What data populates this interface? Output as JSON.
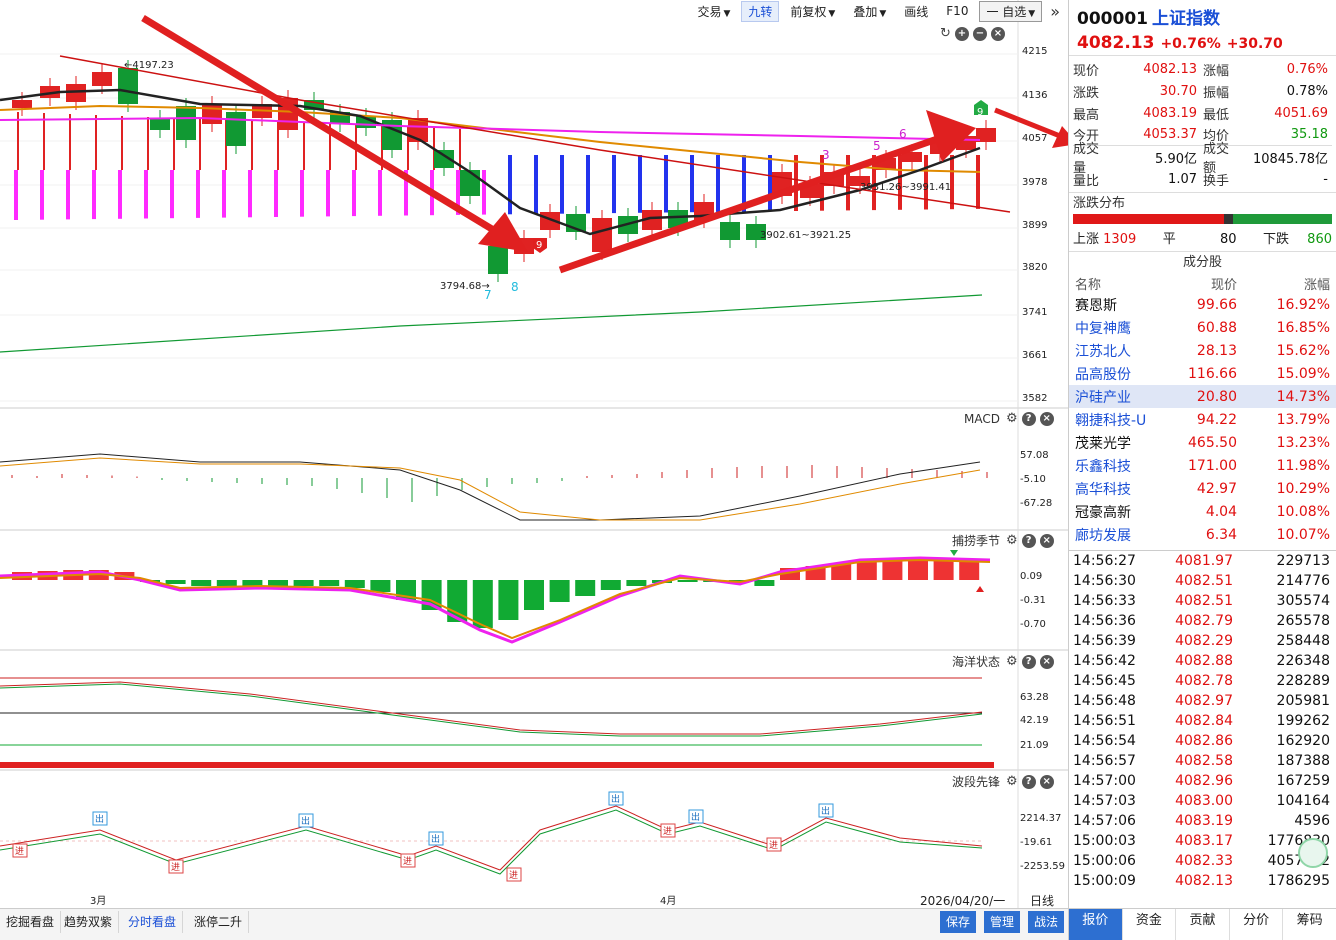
{
  "toolbar": {
    "items": [
      "交易",
      "九转",
      "前复权",
      "叠加",
      "画线",
      "F10",
      "一 自选"
    ],
    "more_icon": "double-chevron-right-icon"
  },
  "main_chart": {
    "price_axis": [
      "4215",
      "4136",
      "4057",
      "3978",
      "3899",
      "3820",
      "3741",
      "3661",
      "3582"
    ],
    "annotations": {
      "high": "←4197.23",
      "low": "3794.68→",
      "mid1": "3902.61~3921.25",
      "mid2": "3931.26~3991.41"
    },
    "nine_counts": {
      "seven": "7",
      "eight": "8",
      "nine_red": "9",
      "nine_green": "9",
      "three": "3",
      "five": "5",
      "six": "6",
      "nine_small": "9"
    },
    "x_labels": [
      "3月",
      "4月"
    ]
  },
  "macd": {
    "title": "MACD",
    "axis": [
      "57.08",
      "-5.10",
      "-67.28"
    ]
  },
  "season": {
    "title": "捕捞季节",
    "axis": [
      "0.09",
      "-0.31",
      "-0.70"
    ]
  },
  "ocean": {
    "title": "海洋状态",
    "axis": [
      "63.28",
      "42.19",
      "21.09"
    ]
  },
  "wave": {
    "title": "波段先锋",
    "axis": [
      "2214.37",
      "-19.61",
      "-2253.59"
    ],
    "out_label": "出",
    "in_label": "进"
  },
  "footer": {
    "date": "2026/04/20/一",
    "period": "日线",
    "tabs": [
      "挖掘看盘",
      "趋势双紫",
      "分时看盘",
      "涨停二升"
    ],
    "right_buttons": [
      "保存",
      "管理",
      "战法"
    ]
  },
  "quote": {
    "code": "000001",
    "name": "上证指数",
    "price": "4082.13",
    "change_pct": "+0.76%",
    "change": "+30.70",
    "stats": [
      {
        "l1": "现价",
        "v1": "4082.13",
        "c1": "red",
        "l2": "涨幅",
        "v2": "0.76%",
        "c2": "red"
      },
      {
        "l1": "涨跌",
        "v1": "30.70",
        "c1": "red",
        "l2": "振幅",
        "v2": "0.78%",
        "c2": "blk"
      },
      {
        "l1": "最高",
        "v1": "4083.19",
        "c1": "red",
        "l2": "最低",
        "v2": "4051.69",
        "c2": "red"
      },
      {
        "l1": "今开",
        "v1": "4053.37",
        "c1": "red",
        "l2": "均价",
        "v2": "35.18",
        "c2": "green"
      },
      {
        "l1": "成交量",
        "v1": "5.90亿",
        "c1": "blk",
        "l2": "成交额",
        "v2": "10845.78亿",
        "c2": "blk"
      },
      {
        "l1": "量比",
        "v1": "1.07",
        "c1": "blk",
        "l2": "换手",
        "v2": "-",
        "c2": "blk"
      }
    ],
    "dist_title": "涨跌分布",
    "dist": {
      "up_label": "上涨",
      "up": "1309",
      "flat_label": "平",
      "flat": "80",
      "down_label": "下跌",
      "down": "860",
      "up_frac": 0.582,
      "flat_frac": 0.036
    },
    "stocks_title": "成分股",
    "stocks_head": [
      "名称",
      "现价",
      "涨幅"
    ],
    "stocks": [
      {
        "n": "赛恩斯",
        "p": "99.66",
        "c": "16.92%",
        "nc": "blk"
      },
      {
        "n": "中复神鹰",
        "p": "60.88",
        "c": "16.85%",
        "nc": "blue"
      },
      {
        "n": "江苏北人",
        "p": "28.13",
        "c": "15.62%",
        "nc": "blue"
      },
      {
        "n": "品高股份",
        "p": "116.66",
        "c": "15.09%",
        "nc": "blue"
      },
      {
        "n": "沪硅产业",
        "p": "20.80",
        "c": "14.73%",
        "nc": "blue"
      },
      {
        "n": "翱捷科技-U",
        "p": "94.22",
        "c": "13.79%",
        "nc": "blue"
      },
      {
        "n": "茂莱光学",
        "p": "465.50",
        "c": "13.23%",
        "nc": "blk"
      },
      {
        "n": "乐鑫科技",
        "p": "171.00",
        "c": "11.98%",
        "nc": "blue"
      },
      {
        "n": "高华科技",
        "p": "42.97",
        "c": "10.29%",
        "nc": "blue"
      },
      {
        "n": "冠豪高新",
        "p": "4.04",
        "c": "10.08%",
        "nc": "blk"
      },
      {
        "n": "廊坊发展",
        "p": "6.34",
        "c": "10.07%",
        "nc": "blue"
      }
    ],
    "ticks": [
      {
        "t": "14:56:27",
        "p": "4081.97",
        "v": "229713"
      },
      {
        "t": "14:56:30",
        "p": "4082.51",
        "v": "214776"
      },
      {
        "t": "14:56:33",
        "p": "4082.51",
        "v": "305574"
      },
      {
        "t": "14:56:36",
        "p": "4082.79",
        "v": "265578"
      },
      {
        "t": "14:56:39",
        "p": "4082.29",
        "v": "258448"
      },
      {
        "t": "14:56:42",
        "p": "4082.88",
        "v": "226348"
      },
      {
        "t": "14:56:45",
        "p": "4082.78",
        "v": "228289"
      },
      {
        "t": "14:56:48",
        "p": "4082.97",
        "v": "205981"
      },
      {
        "t": "14:56:51",
        "p": "4082.84",
        "v": "199262"
      },
      {
        "t": "14:56:54",
        "p": "4082.86",
        "v": "162920"
      },
      {
        "t": "14:56:57",
        "p": "4082.58",
        "v": "187388"
      },
      {
        "t": "14:57:00",
        "p": "4082.96",
        "v": "167259"
      },
      {
        "t": "14:57:03",
        "p": "4083.00",
        "v": "104164"
      },
      {
        "t": "14:57:06",
        "p": "4083.19",
        "v": "4596"
      },
      {
        "t": "15:00:03",
        "p": "4083.17",
        "v": "1776830"
      },
      {
        "t": "15:00:06",
        "p": "4082.33",
        "v": "4057442"
      },
      {
        "t": "15:00:09",
        "p": "4082.13",
        "v": "1786295"
      }
    ],
    "side_tabs": [
      "报价",
      "资金",
      "贡献",
      "分价",
      "筹码"
    ]
  }
}
